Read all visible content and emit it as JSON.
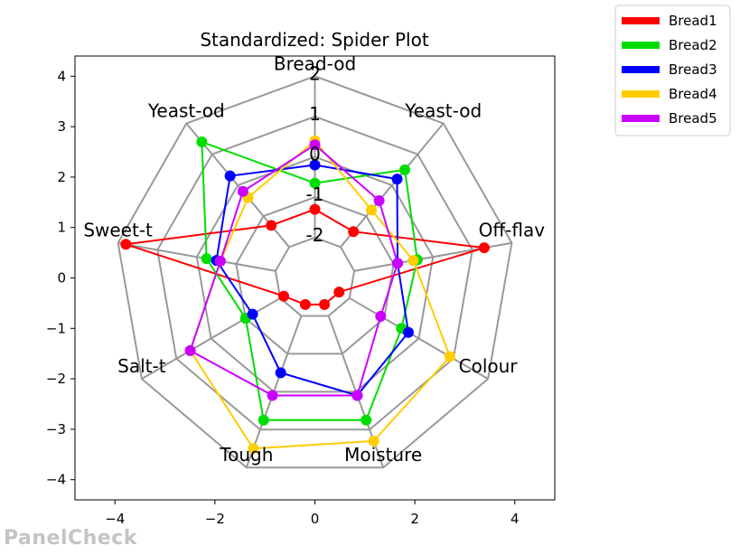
{
  "chart_data": {
    "type": "radar",
    "title": "Standardized: Spider Plot",
    "axes": [
      "Bread-od",
      "Yeast-od",
      "Sweet-t",
      "Salt-t",
      "Tough",
      "Moisture",
      "Colour",
      "Off-flav",
      "Yeast-od"
    ],
    "ring_labels": [
      "2",
      "1",
      "0",
      "-1",
      "-2"
    ],
    "rings": [
      2,
      1,
      0,
      -1,
      -2
    ],
    "scale": {
      "min": -3,
      "max": 2
    },
    "xlim": [
      -4.8,
      4.8
    ],
    "ylim": [
      -4.4,
      4.4
    ],
    "xticks": [
      -4,
      -2,
      0,
      2,
      4
    ],
    "yticks": [
      4,
      3,
      2,
      1,
      0,
      -1,
      -2,
      -3,
      -4
    ],
    "tick_labels": {
      "x": [
        "−4",
        "−2",
        "0",
        "2",
        "4"
      ],
      "y": [
        "4",
        "3",
        "2",
        "1",
        "0",
        "−1",
        "−2",
        "−3",
        "−4"
      ]
    },
    "legend_position": "outside-top-right",
    "series": [
      {
        "name": "Bread1",
        "color": "#ff0000",
        "values": [
          -1.3,
          -1.3,
          1.8,
          -2.1,
          -2.3,
          -2.3,
          -2.3,
          1.3,
          -1.5
        ]
      },
      {
        "name": "Bread2",
        "color": "#00dd00",
        "values": [
          -0.65,
          1.4,
          -0.25,
          -1.0,
          0.75,
          0.75,
          -0.5,
          -0.4,
          0.5
        ]
      },
      {
        "name": "Bread3",
        "color": "#0000ff",
        "values": [
          -0.2,
          0.3,
          -0.5,
          -1.2,
          -0.5,
          0.1,
          -0.3,
          -0.9,
          0.2
        ]
      },
      {
        "name": "Bread4",
        "color": "#ffcc00",
        "values": [
          0.4,
          -0.4,
          -0.6,
          0.6,
          1.5,
          1.3,
          0.9,
          -0.5,
          -0.8
        ]
      },
      {
        "name": "Bread5",
        "color": "#cc00ff",
        "values": [
          0.3,
          -0.2,
          -0.6,
          0.6,
          0.1,
          0.1,
          -1.1,
          -0.9,
          -0.5
        ]
      }
    ]
  },
  "watermark": "PanelCheck"
}
